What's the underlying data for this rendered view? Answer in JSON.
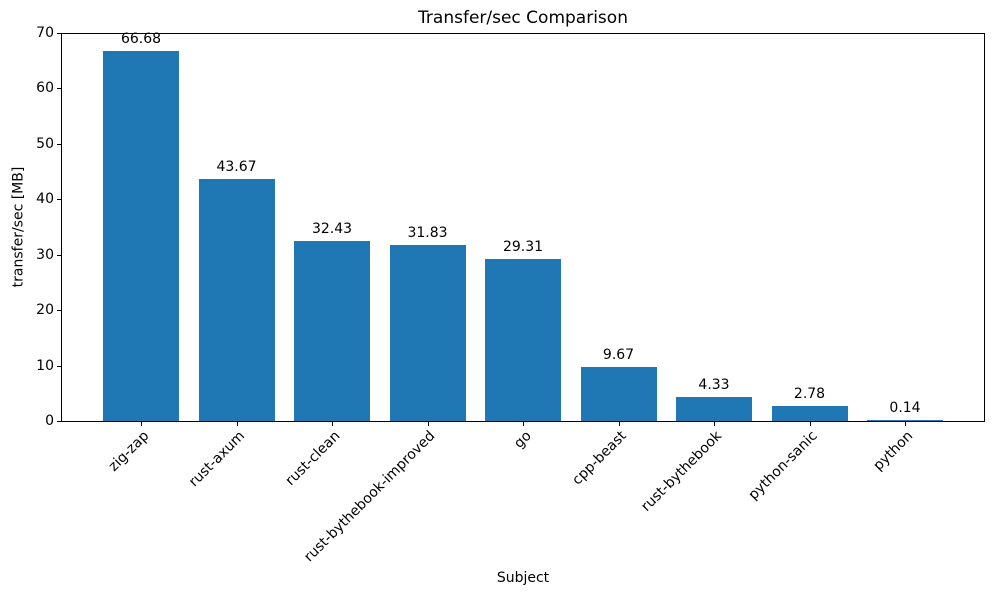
{
  "chart_data": {
    "type": "bar",
    "title": "Transfer/sec Comparison",
    "xlabel": "Subject",
    "ylabel": "transfer/sec [MB]",
    "categories": [
      "zig-zap",
      "rust-axum",
      "rust-clean",
      "rust-bythebook-improved",
      "go",
      "cpp-beast",
      "rust-bythebook",
      "python-sanic",
      "python"
    ],
    "values": [
      66.68,
      43.67,
      32.43,
      31.83,
      29.31,
      9.67,
      4.33,
      2.78,
      0.14
    ],
    "value_labels": [
      "66.68",
      "43.67",
      "32.43",
      "31.83",
      "29.31",
      "9.67",
      "4.33",
      "2.78",
      "0.14"
    ],
    "ylim": [
      0,
      70
    ],
    "yticks": [
      0,
      10,
      20,
      30,
      40,
      50,
      60,
      70
    ],
    "bar_color": "#1f77b4",
    "grid": false,
    "legend": null,
    "x_tick_rotation_deg": 45
  }
}
